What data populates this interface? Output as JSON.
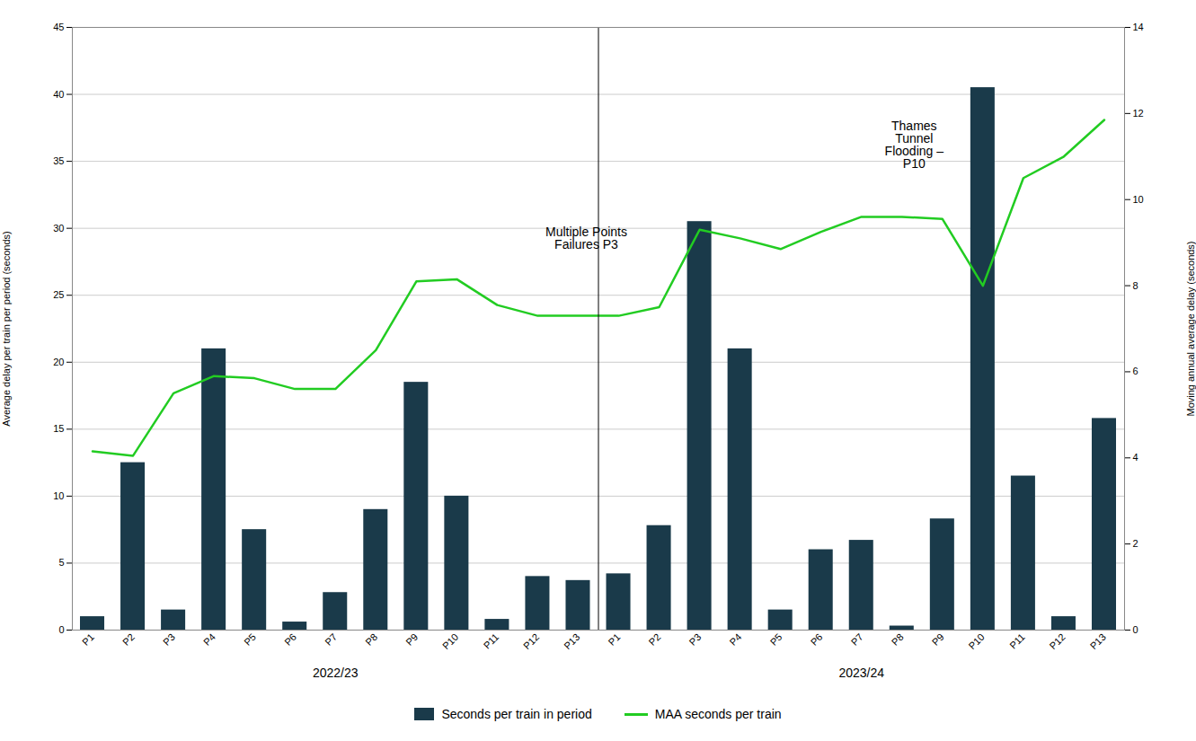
{
  "chart_data": {
    "type": "bar",
    "categories": [
      "P1",
      "P2",
      "P3",
      "P4",
      "P5",
      "P6",
      "P7",
      "P8",
      "P9",
      "P10",
      "P11",
      "P12",
      "P13",
      "P1",
      "P2",
      "P3",
      "P4",
      "P5",
      "P6",
      "P7",
      "P8",
      "P9",
      "P10",
      "P11",
      "P12",
      "P13"
    ],
    "year_labels": [
      "2022/23",
      "2023/24"
    ],
    "series": [
      {
        "name": "Seconds per train in period",
        "type": "bar",
        "color": "#1a3a4a",
        "values": [
          1.0,
          12.5,
          1.5,
          21.0,
          7.5,
          0.6,
          2.8,
          9.0,
          18.5,
          10.0,
          0.8,
          4.0,
          3.7,
          4.2,
          7.8,
          30.5,
          21.0,
          1.5,
          6.0,
          6.7,
          0.3,
          8.3,
          40.5,
          11.5,
          1.0,
          15.8
        ]
      },
      {
        "name": "MAA seconds per train",
        "type": "line",
        "color": "#22cc22",
        "axis": "y2",
        "values": [
          4.15,
          4.05,
          5.5,
          5.9,
          5.85,
          5.6,
          5.6,
          6.5,
          8.1,
          8.15,
          7.55,
          7.3,
          7.3,
          7.3,
          7.5,
          9.3,
          9.1,
          8.85,
          9.25,
          9.6,
          9.6,
          9.55,
          8.0,
          10.5,
          11.0,
          11.85
        ]
      }
    ],
    "ylabel": "Average delay per train per period (seconds)",
    "y2label": "Moving annual average delay (seconds)",
    "ylim": [
      0,
      45
    ],
    "yticks": [
      0,
      5,
      10,
      15,
      20,
      25,
      30,
      35,
      40,
      45
    ],
    "y2lim": [
      0,
      14
    ],
    "y2ticks": [
      0,
      2,
      4,
      6,
      8,
      10,
      12,
      14
    ],
    "grid": true,
    "legend": "bottom",
    "annotations": [
      {
        "text": "Multiple Points\nFailures P3",
        "x": 12.2,
        "y": 28.5
      },
      {
        "text": "Thames\nTunnel\nFlooding –\nP10",
        "x": 20.3,
        "y": 34.5
      }
    ]
  }
}
